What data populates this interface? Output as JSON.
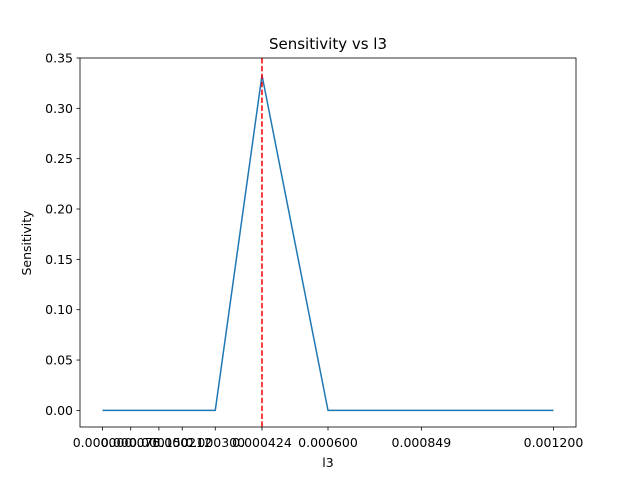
{
  "chart_data": {
    "type": "line",
    "title": "Sensitivity vs l3",
    "xlabel": "l3",
    "ylabel": "Sensitivity",
    "x_ticks": [
      {
        "value": 0.0,
        "label": "0.000000"
      },
      {
        "value": 7.5e-05,
        "label": "0.000075"
      },
      {
        "value": 0.00015,
        "label": "0.000150"
      },
      {
        "value": 0.000212,
        "label": "0.000212"
      },
      {
        "value": 0.0003,
        "label": "0.000300"
      },
      {
        "value": 0.0004243,
        "label": "0.000424"
      },
      {
        "value": 0.0006,
        "label": "0.000600"
      },
      {
        "value": 0.0008485,
        "label": "0.000849"
      },
      {
        "value": 0.0012,
        "label": "0.001200"
      }
    ],
    "xlim": [
      -6e-05,
      0.00126
    ],
    "ylim": [
      -0.0165,
      0.35
    ],
    "y_ticks": [
      {
        "value": 0.0,
        "label": "0.00"
      },
      {
        "value": 0.05,
        "label": "0.05"
      },
      {
        "value": 0.1,
        "label": "0.10"
      },
      {
        "value": 0.15,
        "label": "0.15"
      },
      {
        "value": 0.2,
        "label": "0.20"
      },
      {
        "value": 0.25,
        "label": "0.25"
      },
      {
        "value": 0.3,
        "label": "0.30"
      },
      {
        "value": 0.35,
        "label": "0.35"
      }
    ],
    "series": [
      {
        "color": "#1f77b4",
        "x": [
          0.0,
          7.5e-05,
          0.00015,
          0.000212,
          0.0003,
          0.0004243,
          0.0006,
          0.0008485,
          0.0012
        ],
        "y": [
          0.0,
          0.0,
          0.0,
          0.0,
          0.0,
          0.333,
          0.0,
          0.0,
          0.0
        ]
      }
    ],
    "vline": {
      "x": 0.0004243,
      "color": "#ff0000",
      "style": "dashed"
    },
    "grid": false
  }
}
